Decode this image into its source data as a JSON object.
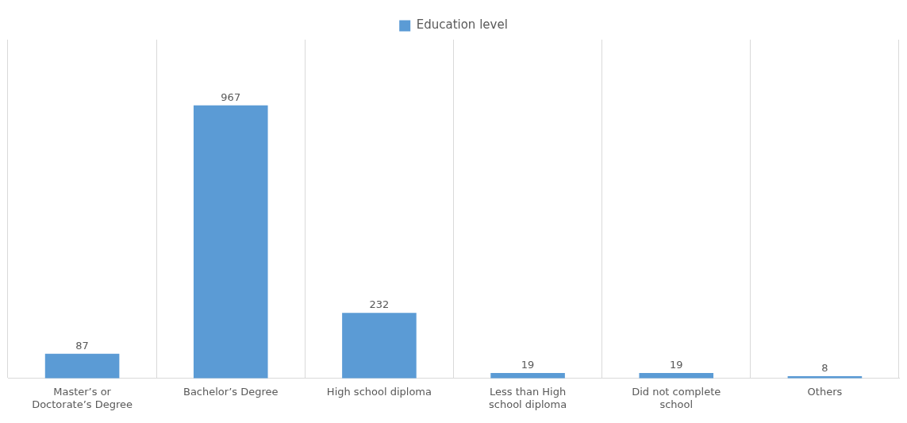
{
  "chart_data": {
    "type": "bar",
    "categories": [
      "Master’s or Doctorate’s Degree",
      "Bachelor’s Degree",
      "High school diploma",
      "Less than High school diploma",
      "Did not complete school",
      "Others"
    ],
    "series": [
      {
        "name": "Education level",
        "color": "#5b9bd5",
        "values": [
          87,
          967,
          232,
          19,
          19,
          8
        ]
      }
    ],
    "data_labels": true,
    "grid": "x",
    "legend": "top"
  }
}
